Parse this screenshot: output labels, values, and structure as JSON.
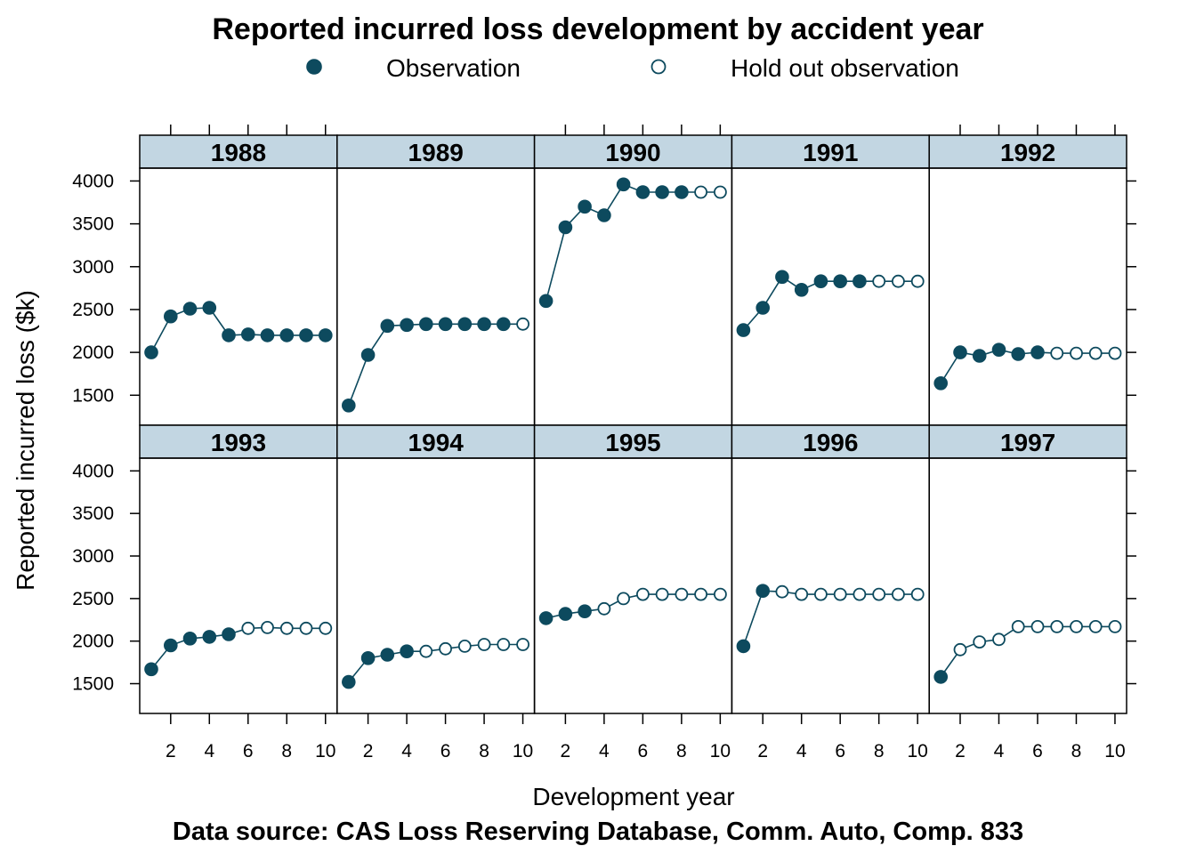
{
  "chart_data": {
    "type": "scatter",
    "title": "Reported incurred loss development by accident year",
    "caption": "Data source: CAS Loss Reserving Database, Comm. Auto, Comp. 833",
    "xlabel": "Development year",
    "ylabel": "Reported incurred loss ($k)",
    "xlim": [
      0.4,
      10.6
    ],
    "ylim": [
      1150,
      4150
    ],
    "x_ticks": [
      2,
      4,
      6,
      8,
      10
    ],
    "y_ticks": [
      1500,
      2000,
      2500,
      3000,
      3500,
      4000
    ],
    "layout": {
      "columns": 5,
      "rows": 2
    },
    "colors": {
      "point": "#0d4a5e",
      "strip": "#c2d6e2"
    },
    "legend": {
      "placement": "top",
      "items": [
        {
          "label": "Observation",
          "marker": "filled-circle"
        },
        {
          "label": "Hold out observation",
          "marker": "open-circle"
        }
      ]
    },
    "x": [
      1,
      2,
      3,
      4,
      5,
      6,
      7,
      8,
      9,
      10
    ],
    "panels": [
      {
        "label": "1988",
        "values": [
          2000,
          2420,
          2510,
          2520,
          2200,
          2210,
          2200,
          2200,
          2200,
          2200
        ],
        "observed_count": 10
      },
      {
        "label": "1989",
        "values": [
          1380,
          1970,
          2310,
          2320,
          2330,
          2330,
          2330,
          2330,
          2330,
          2330
        ],
        "observed_count": 9
      },
      {
        "label": "1990",
        "values": [
          2600,
          3460,
          3700,
          3600,
          3960,
          3870,
          3870,
          3870,
          3870,
          3870
        ],
        "observed_count": 8
      },
      {
        "label": "1991",
        "values": [
          2260,
          2520,
          2880,
          2730,
          2830,
          2830,
          2830,
          2830,
          2830,
          2830
        ],
        "observed_count": 7
      },
      {
        "label": "1992",
        "values": [
          1640,
          2000,
          1960,
          2030,
          1980,
          2000,
          1990,
          1990,
          1990,
          1990
        ],
        "observed_count": 6
      },
      {
        "label": "1993",
        "values": [
          1670,
          1950,
          2030,
          2050,
          2080,
          2150,
          2160,
          2150,
          2150,
          2150
        ],
        "observed_count": 5
      },
      {
        "label": "1994",
        "values": [
          1520,
          1800,
          1840,
          1880,
          1880,
          1910,
          1940,
          1960,
          1960,
          1960
        ],
        "observed_count": 4
      },
      {
        "label": "1995",
        "values": [
          2270,
          2320,
          2350,
          2380,
          2500,
          2550,
          2550,
          2550,
          2550,
          2550
        ],
        "observed_count": 3
      },
      {
        "label": "1996",
        "values": [
          1940,
          2590,
          2580,
          2550,
          2550,
          2550,
          2550,
          2550,
          2550,
          2550
        ],
        "observed_count": 2
      },
      {
        "label": "1997",
        "values": [
          1580,
          1900,
          1990,
          2020,
          2170,
          2170,
          2170,
          2170,
          2170,
          2170
        ],
        "observed_count": 1
      }
    ]
  }
}
